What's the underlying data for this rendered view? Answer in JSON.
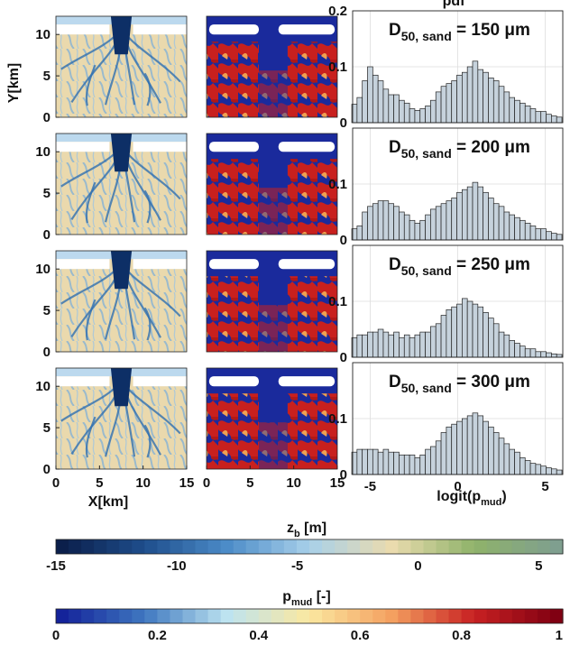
{
  "figure": {
    "ylabel": "Y[km]",
    "xlabel": "X[km]",
    "hist_title": "pdf",
    "hist_xlabel_main": "logit(p",
    "hist_xlabel_sub": "mud",
    "hist_xlabel_close": ")",
    "map_yticks": [
      "0",
      "5",
      "10"
    ],
    "map_xticks": [
      "0",
      "5",
      "10",
      "15"
    ],
    "hist_yticks": [
      "0",
      "0.1",
      "0.2"
    ],
    "hist_xticks": [
      "-5",
      "0",
      "5"
    ]
  },
  "panels": [
    {
      "annot_main": "D",
      "annot_sub": "50, sand",
      "annot_rest": " = 150 μm"
    },
    {
      "annot_main": "D",
      "annot_sub": "50, sand",
      "annot_rest": " = 200 μm"
    },
    {
      "annot_main": "D",
      "annot_sub": "50, sand",
      "annot_rest": " = 250 μm"
    },
    {
      "annot_main": "D",
      "annot_sub": "50, sand",
      "annot_rest": " = 300 μm"
    }
  ],
  "colorbars": [
    {
      "label_main": "z",
      "label_sub": "b",
      "label_rest": " [m]",
      "ticks": [
        "-15",
        "-10",
        "-5",
        "0",
        "5"
      ],
      "range": [
        -15,
        6
      ],
      "colors": [
        "#0b1f4b",
        "#1f4e8c",
        "#4c8cc8",
        "#a8d0ea",
        "#eadbae",
        "#8fb36a",
        "#7f9f8f"
      ]
    },
    {
      "label_main": "p",
      "label_sub": "mud",
      "label_rest": " [-]",
      "ticks": [
        "0",
        "0.2",
        "0.4",
        "0.6",
        "0.8",
        "1"
      ],
      "range": [
        0,
        1
      ],
      "colors": [
        "#14239a",
        "#3f78c0",
        "#bde3f0",
        "#fbe8a0",
        "#f4a060",
        "#c82022",
        "#800012"
      ]
    }
  ],
  "colors": {
    "hist_bar": "#c6d2dc",
    "hist_edge": "#222222",
    "grid": "#dddddd"
  },
  "chart_data": {
    "type": "bar",
    "title": "pdf",
    "xlabel": "logit(p_mud)",
    "xlim": [
      -6,
      6
    ],
    "ylim": [
      0,
      0.2
    ],
    "x": [
      -5.9,
      -5.6,
      -5.3,
      -5.0,
      -4.7,
      -4.4,
      -4.1,
      -3.8,
      -3.5,
      -3.2,
      -2.9,
      -2.6,
      -2.3,
      -2.0,
      -1.7,
      -1.4,
      -1.1,
      -0.8,
      -0.5,
      -0.2,
      0.1,
      0.4,
      0.7,
      1.0,
      1.3,
      1.6,
      1.9,
      2.2,
      2.5,
      2.8,
      3.1,
      3.4,
      3.7,
      4.0,
      4.3,
      4.6,
      4.9,
      5.2,
      5.5,
      5.8
    ],
    "series": [
      {
        "values": [
          0.033,
          0.045,
          0.075,
          0.1,
          0.085,
          0.075,
          0.06,
          0.05,
          0.05,
          0.04,
          0.035,
          0.025,
          0.022,
          0.025,
          0.03,
          0.04,
          0.055,
          0.065,
          0.07,
          0.075,
          0.085,
          0.09,
          0.1,
          0.11,
          0.095,
          0.09,
          0.08,
          0.075,
          0.065,
          0.055,
          0.045,
          0.04,
          0.035,
          0.03,
          0.025,
          0.02,
          0.02,
          0.015,
          0.012,
          0.01
        ]
      },
      {
        "values": [
          0.02,
          0.025,
          0.05,
          0.06,
          0.065,
          0.07,
          0.07,
          0.065,
          0.06,
          0.05,
          0.045,
          0.035,
          0.03,
          0.035,
          0.045,
          0.055,
          0.06,
          0.065,
          0.07,
          0.075,
          0.085,
          0.09,
          0.095,
          0.103,
          0.095,
          0.085,
          0.075,
          0.065,
          0.06,
          0.05,
          0.045,
          0.04,
          0.035,
          0.03,
          0.025,
          0.02,
          0.02,
          0.015,
          0.012,
          0.01
        ]
      },
      {
        "values": [
          0.035,
          0.04,
          0.04,
          0.045,
          0.045,
          0.05,
          0.045,
          0.04,
          0.045,
          0.035,
          0.04,
          0.035,
          0.04,
          0.045,
          0.045,
          0.055,
          0.06,
          0.075,
          0.085,
          0.09,
          0.095,
          0.105,
          0.1,
          0.095,
          0.09,
          0.08,
          0.07,
          0.06,
          0.045,
          0.04,
          0.03,
          0.025,
          0.02,
          0.015,
          0.015,
          0.01,
          0.01,
          0.008,
          0.006,
          0.005
        ]
      },
      {
        "values": [
          0.04,
          0.045,
          0.045,
          0.045,
          0.045,
          0.04,
          0.045,
          0.04,
          0.04,
          0.035,
          0.035,
          0.035,
          0.03,
          0.035,
          0.045,
          0.05,
          0.06,
          0.075,
          0.085,
          0.09,
          0.095,
          0.1,
          0.105,
          0.11,
          0.105,
          0.095,
          0.085,
          0.075,
          0.065,
          0.055,
          0.045,
          0.04,
          0.03,
          0.025,
          0.02,
          0.018,
          0.015,
          0.012,
          0.01,
          0.008
        ]
      }
    ]
  }
}
